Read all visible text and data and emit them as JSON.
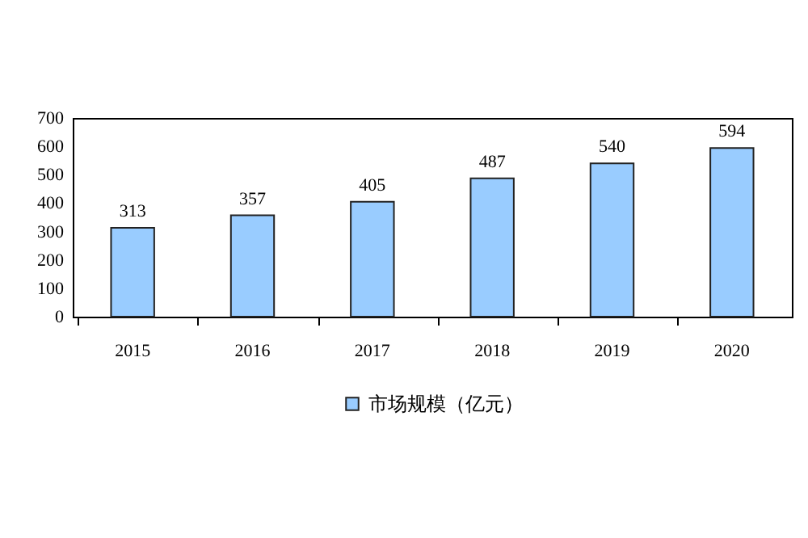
{
  "chart_data": {
    "type": "bar",
    "categories": [
      "2015",
      "2016",
      "2017",
      "2018",
      "2019",
      "2020"
    ],
    "series": [
      {
        "name": "市场规模（亿元）",
        "color": "#99ccff",
        "values": [
          313,
          357,
          405,
          487,
          540,
          594
        ]
      }
    ],
    "ylim": [
      0,
      700
    ],
    "yticks": [
      0,
      100,
      200,
      300,
      400,
      500,
      600,
      700
    ],
    "data_labels": true,
    "legend": "bottom",
    "grid": false
  }
}
